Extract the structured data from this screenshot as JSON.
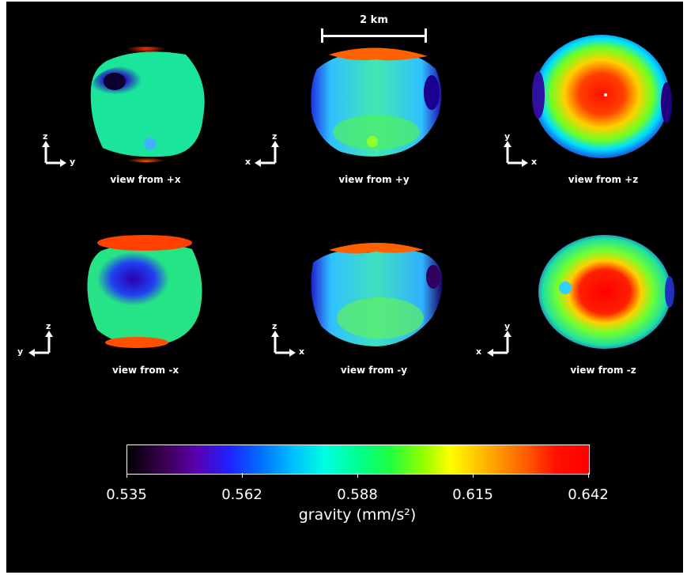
{
  "scale_bar": {
    "label": "2 km"
  },
  "views": [
    {
      "label": "view from +x",
      "axis_up": "z",
      "axis_side": "y",
      "side_dir": "right"
    },
    {
      "label": "view from +y",
      "axis_up": "z",
      "axis_side": "x",
      "side_dir": "left"
    },
    {
      "label": "view from +z",
      "axis_up": "y",
      "axis_side": "x",
      "side_dir": "right"
    },
    {
      "label": "view from -x",
      "axis_up": "z",
      "axis_side": "y",
      "side_dir": "left"
    },
    {
      "label": "view from -y",
      "axis_up": "z",
      "axis_side": "x",
      "side_dir": "right"
    },
    {
      "label": "view from -z",
      "axis_up": "y",
      "axis_side": "x",
      "side_dir": "left"
    }
  ],
  "colorbar": {
    "title": "gravity (mm/s²)",
    "ticks": [
      "0.535",
      "0.562",
      "0.588",
      "0.615",
      "0.642"
    ],
    "min": 0.535,
    "max": 0.642
  },
  "colors": {
    "background": "#000000",
    "text": "#ffffff"
  }
}
